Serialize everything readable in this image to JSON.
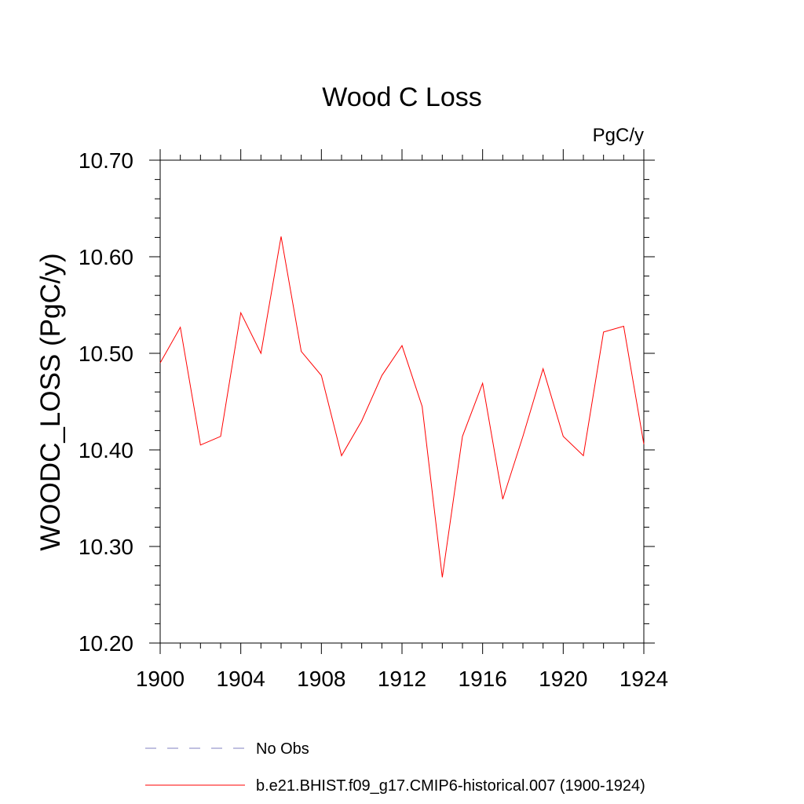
{
  "chart_data": {
    "type": "line",
    "title": "Wood C Loss",
    "units": "PgC/y",
    "ylabel": "WOODC_LOSS  (PgC/y)",
    "xlabel": "",
    "xlim": [
      1900,
      1924
    ],
    "ylim": [
      10.2,
      10.7
    ],
    "x_ticks": [
      "1900",
      "1904",
      "1908",
      "1912",
      "1916",
      "1920",
      "1924"
    ],
    "y_ticks": [
      "10.20",
      "10.30",
      "10.40",
      "10.50",
      "10.60",
      "10.70"
    ],
    "grid": false,
    "legend_position": "bottom",
    "series": [
      {
        "name": "No Obs",
        "color": "#8080c0",
        "style": "dashed",
        "x": [],
        "values": []
      },
      {
        "name": "b.e21.BHIST.f09_g17.CMIP6-historical.007 (1900-1924)",
        "color": "#ff0000",
        "style": "solid",
        "x": [
          1900,
          1901,
          1902,
          1903,
          1904,
          1905,
          1906,
          1907,
          1908,
          1909,
          1910,
          1911,
          1912,
          1913,
          1914,
          1915,
          1916,
          1917,
          1918,
          1919,
          1920,
          1921,
          1922,
          1923,
          1924
        ],
        "values": [
          10.49,
          10.527,
          10.405,
          10.414,
          10.542,
          10.5,
          10.621,
          10.502,
          10.477,
          10.394,
          10.43,
          10.477,
          10.508,
          10.445,
          10.268,
          10.414,
          10.469,
          10.349,
          10.414,
          10.484,
          10.414,
          10.394,
          10.522,
          10.528,
          10.406
        ]
      }
    ]
  }
}
